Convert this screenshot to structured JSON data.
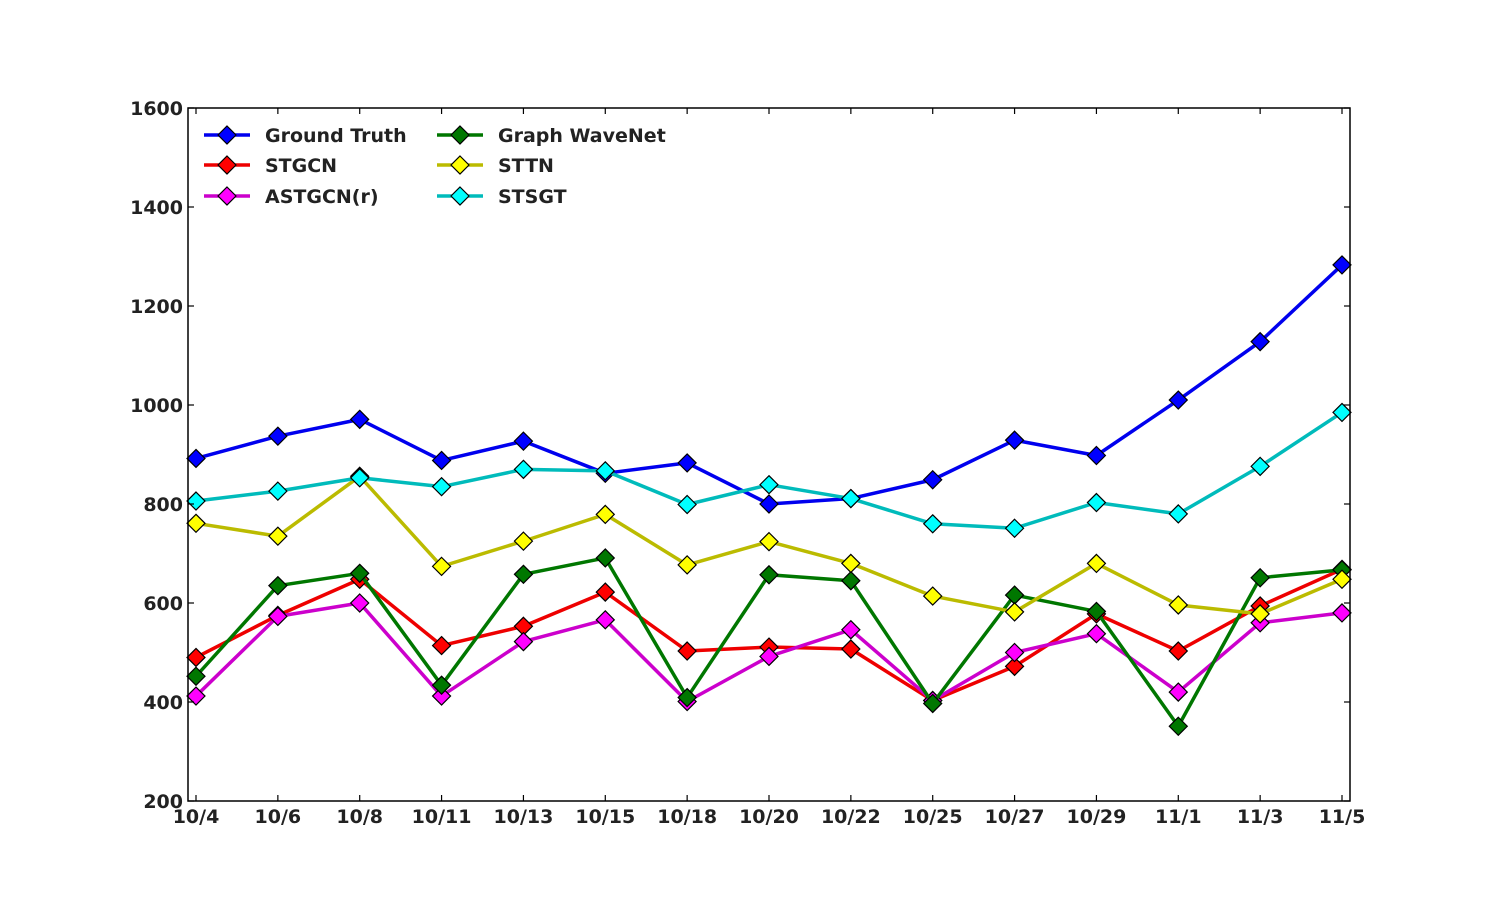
{
  "chart_data": {
    "type": "line",
    "title": "",
    "xlabel": "",
    "ylabel": "",
    "categories": [
      "10/4",
      "10/6",
      "10/8",
      "10/11",
      "10/13",
      "10/15",
      "10/18",
      "10/20",
      "10/22",
      "10/25",
      "10/27",
      "10/29",
      "11/1",
      "11/3",
      "11/5"
    ],
    "ylim": [
      200,
      1600
    ],
    "yticks": [
      200,
      400,
      600,
      800,
      1000,
      1200,
      1400,
      1600
    ],
    "grid": false,
    "legend_position": "top-left",
    "marker": "diamond",
    "series": [
      {
        "name": "Ground Truth",
        "color": "#0000ee",
        "values": [
          892,
          937,
          971,
          888,
          927,
          862,
          883,
          800,
          811,
          849,
          929,
          898,
          1010,
          1128,
          1283
        ]
      },
      {
        "name": "STGCN",
        "color": "#ee0000",
        "values": [
          490,
          575,
          648,
          514,
          553,
          622,
          503,
          511,
          507,
          403,
          472,
          578,
          503,
          594,
          668
        ]
      },
      {
        "name": "ASTGCN(r)",
        "color": "#cc00cc",
        "values": [
          412,
          573,
          600,
          412,
          522,
          566,
          401,
          492,
          546,
          403,
          500,
          538,
          420,
          560,
          580
        ]
      },
      {
        "name": "Graph WaveNet",
        "color": "#007700",
        "values": [
          452,
          635,
          660,
          434,
          658,
          691,
          409,
          657,
          645,
          397,
          616,
          583,
          351,
          651,
          667
        ]
      },
      {
        "name": "STTN",
        "color": "#bbbb00",
        "values": [
          761,
          735,
          856,
          674,
          725,
          779,
          677,
          724,
          680,
          614,
          582,
          680,
          596,
          578,
          648
        ]
      },
      {
        "name": "STSGT",
        "color": "#00bbbb",
        "values": [
          806,
          826,
          853,
          835,
          870,
          867,
          799,
          839,
          811,
          760,
          751,
          803,
          780,
          876,
          985
        ]
      }
    ]
  }
}
